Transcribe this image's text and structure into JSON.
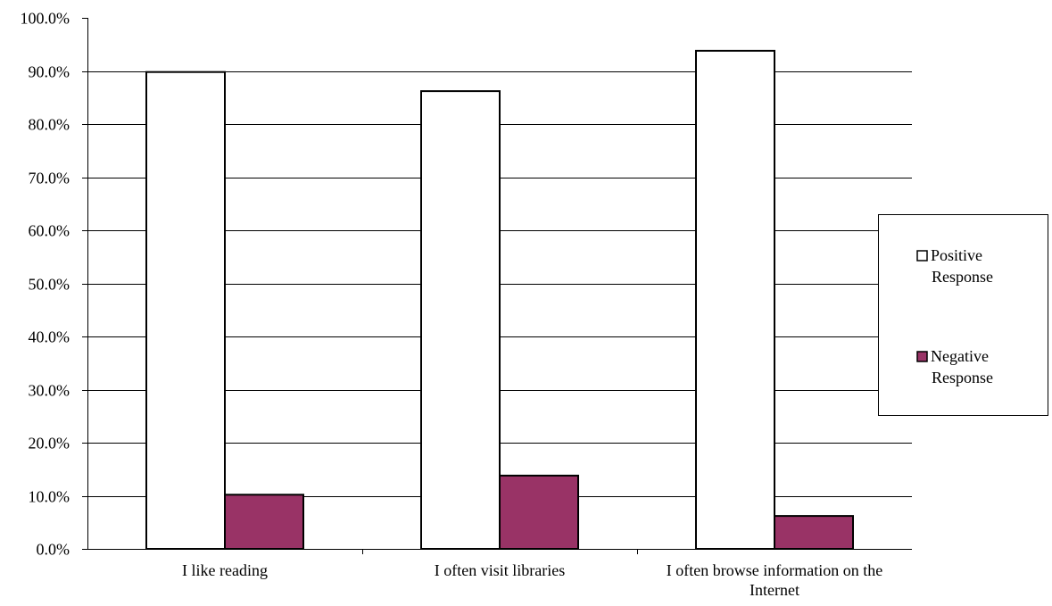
{
  "chart_data": {
    "type": "bar",
    "title": "",
    "xlabel": "",
    "ylabel": "",
    "categories": [
      [
        "I like reading"
      ],
      [
        "I often visit libraries"
      ],
      [
        "I often browse information on the",
        "Internet"
      ]
    ],
    "series": [
      {
        "name": [
          "Positive",
          "Response"
        ],
        "values": [
          89.8,
          86.2,
          93.8
        ],
        "color": "#ffffff",
        "stroke": "#000000"
      },
      {
        "name": [
          "Negative",
          "Response"
        ],
        "values": [
          10.2,
          13.8,
          6.2
        ],
        "color": "#993366",
        "stroke": "#000000"
      }
    ],
    "ylim": [
      0,
      100
    ],
    "y_ticks": [
      "0.0%",
      "10.0%",
      "20.0%",
      "30.0%",
      "40.0%",
      "50.0%",
      "60.0%",
      "70.0%",
      "80.0%",
      "90.0%",
      "100.0%"
    ],
    "grid": true,
    "legend_position": "right",
    "gridline_color": "#000000",
    "axis_color": "#000000"
  }
}
